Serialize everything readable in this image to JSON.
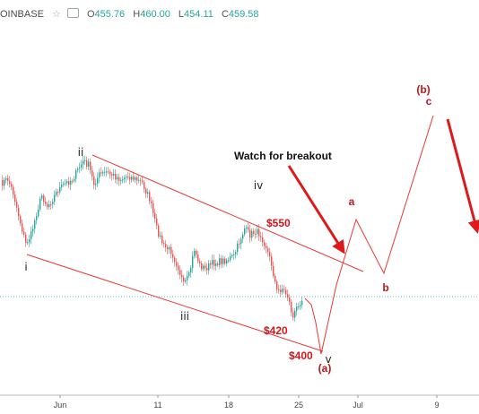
{
  "header": {
    "symbol": "OINBASE",
    "open_label": "O",
    "open": "455.76",
    "high_label": "H",
    "high": "460.00",
    "low_label": "L",
    "low": "454.11",
    "close_label": "C",
    "close": "459.58"
  },
  "chart_data": {
    "type": "candlestick",
    "x_ticks": [
      "Jun",
      "11",
      "18",
      "25",
      "Jul",
      "9"
    ],
    "y_range_approx": [
      385,
      585
    ],
    "wave_labels": [
      "i",
      "ii",
      "iii",
      "iv",
      "v",
      "(a)",
      "a",
      "b",
      "(b)",
      "c"
    ],
    "price_labels": [
      "$550",
      "$420",
      "$400"
    ],
    "annotation": "Watch for breakout",
    "colors": {
      "up": "#26a69a",
      "down": "#ef5350",
      "projection": "#e53935",
      "arrow": "#dd1a1a",
      "text_red": "#c0151b",
      "hline": "#26a69a"
    }
  }
}
